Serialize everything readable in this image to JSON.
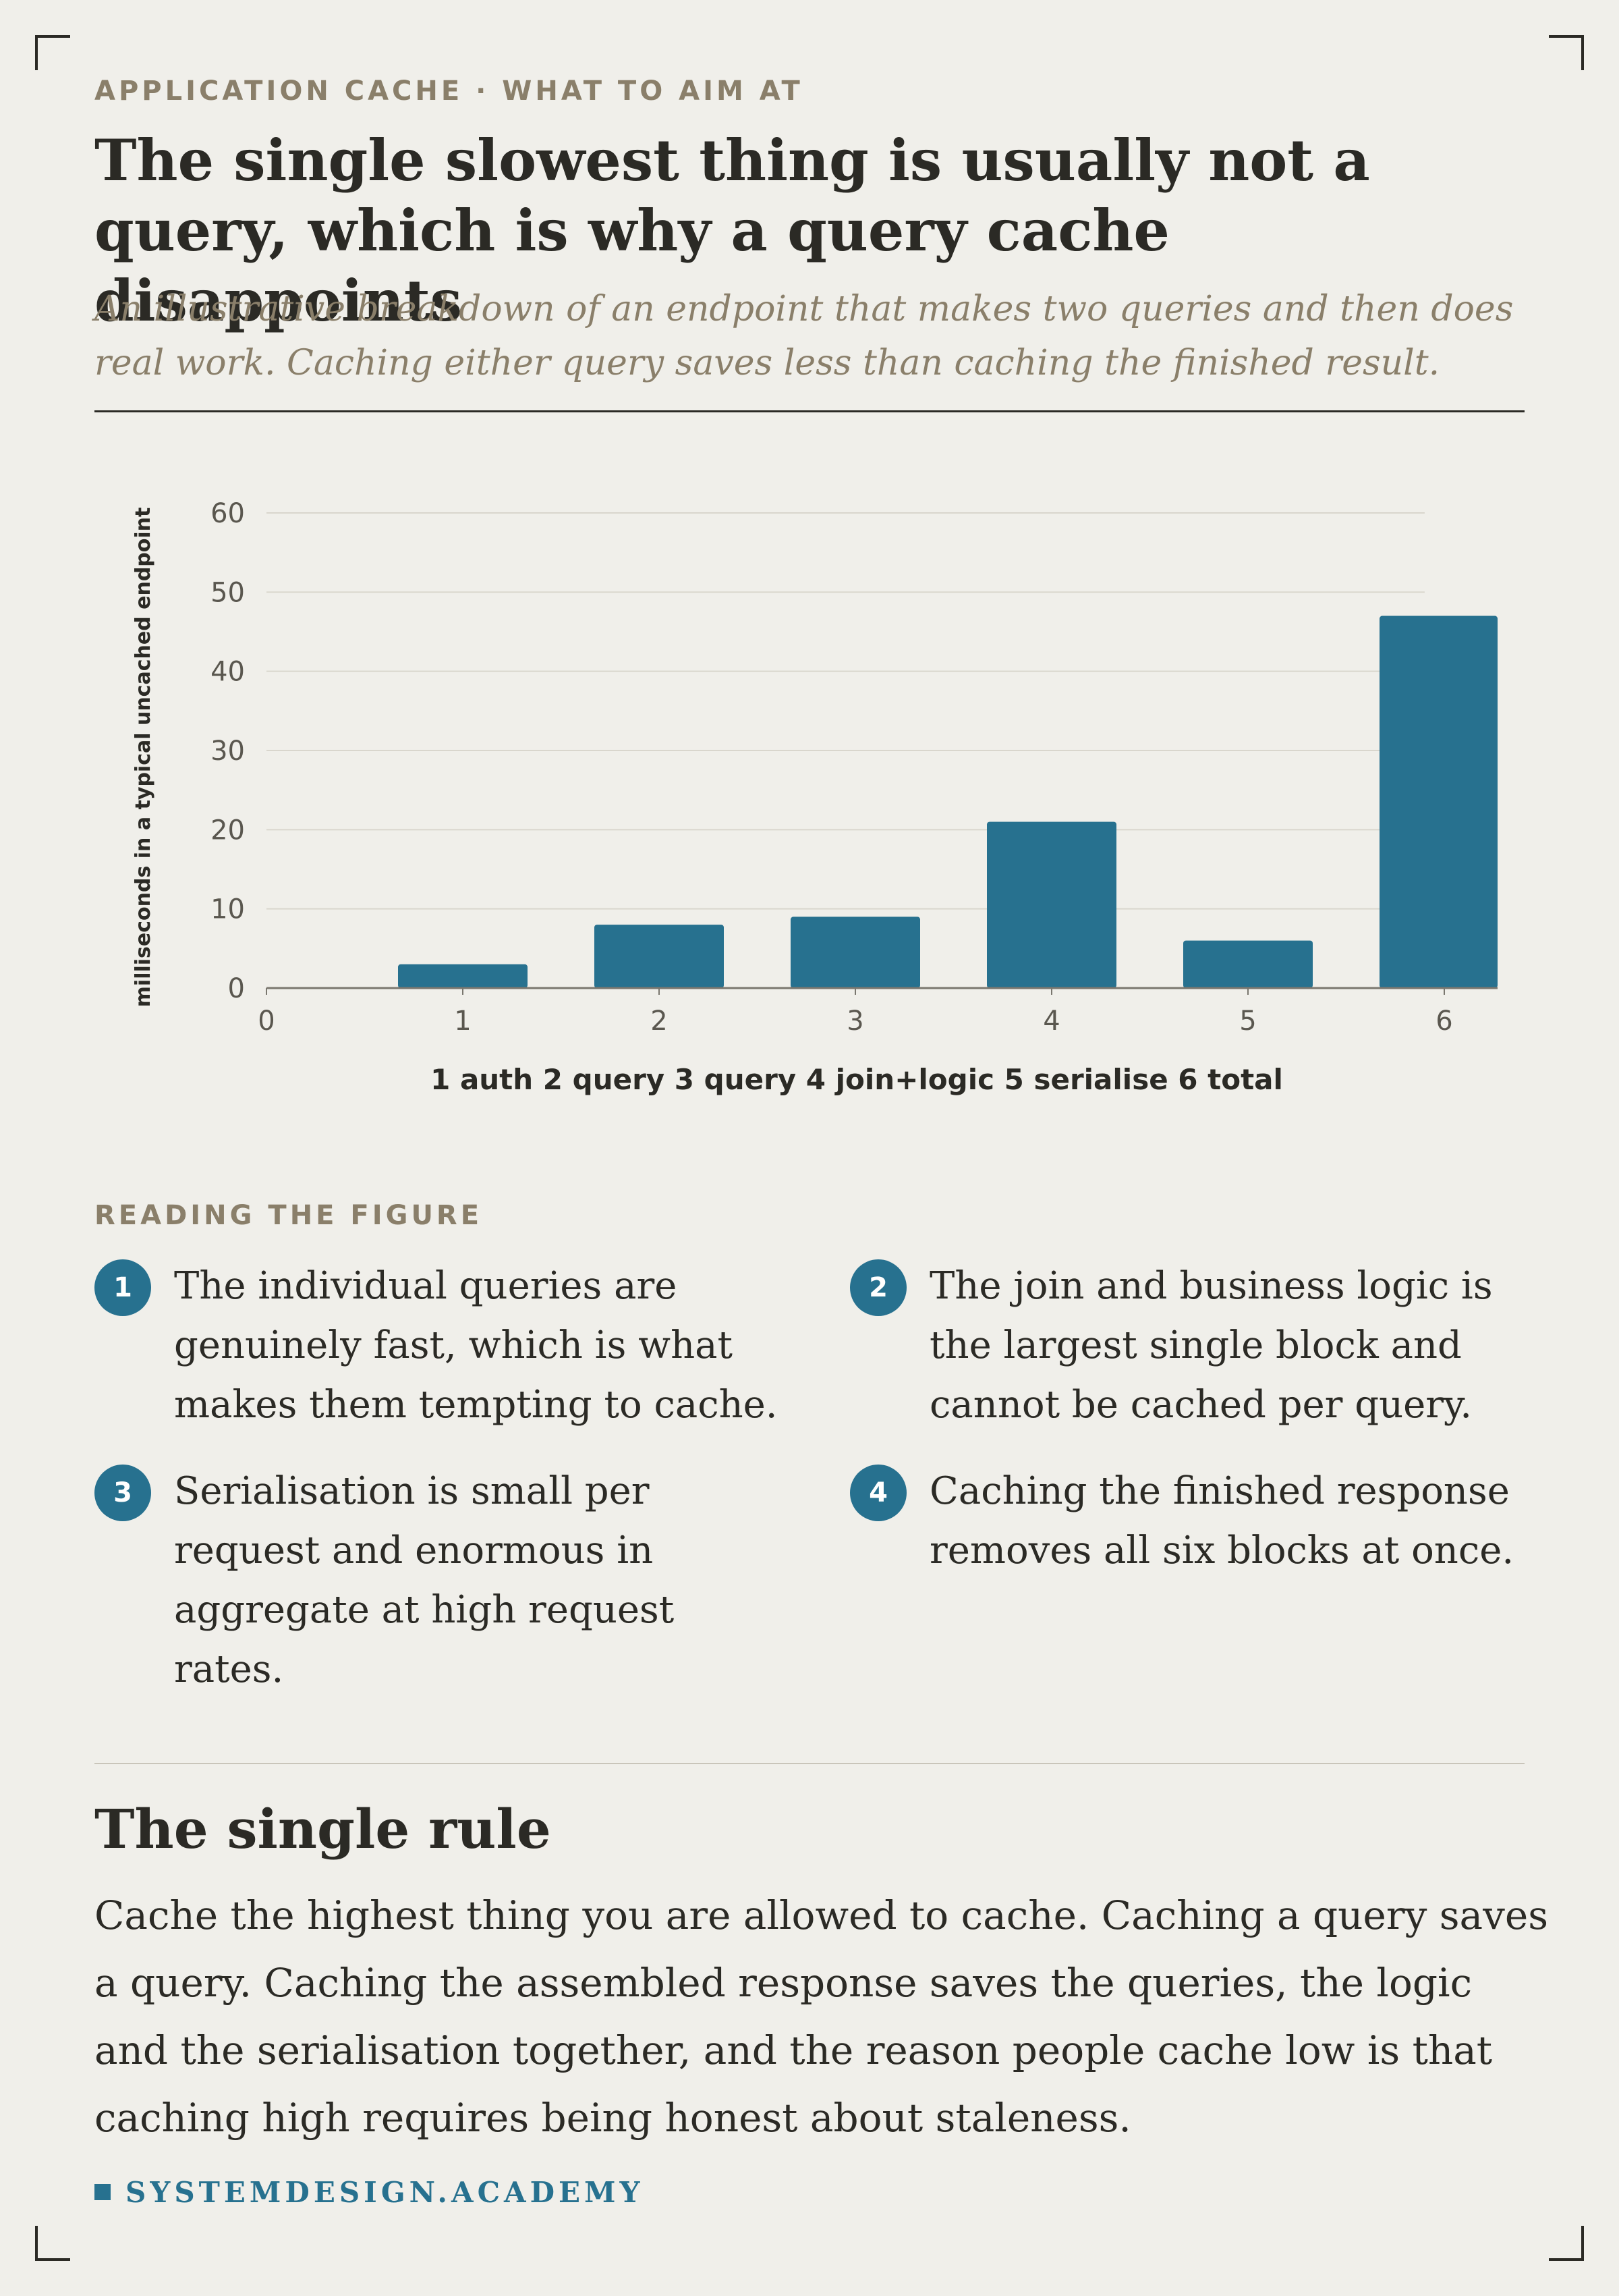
{
  "header": {
    "eyebrow": "APPLICATION CACHE · WHAT TO AIM AT",
    "title": "The single slowest thing is usually not a query, which is why a query cache disappoints",
    "subtitle": "An illustrative breakdown of an endpoint that makes two queries and then does real work. Caching either query saves less than caching the finished result."
  },
  "colors": {
    "bar": "#27718f",
    "accent": "#27718f",
    "muted": "#8a7f6a",
    "ink": "#2b2a25",
    "background": "#f0efea"
  },
  "chart_data": {
    "type": "bar",
    "x": [
      1,
      2,
      3,
      4,
      5,
      6
    ],
    "values": [
      3,
      8,
      9,
      21,
      6,
      47
    ],
    "xlim": [
      0,
      6
    ],
    "ylim": [
      0,
      60
    ],
    "xticks": [
      "0",
      "1",
      "2",
      "3",
      "4",
      "5",
      "6"
    ],
    "yticks": [
      "0",
      "10",
      "20",
      "30",
      "40",
      "50",
      "60"
    ],
    "xlabel": "1 auth 2 query 3 query 4 join+logic 5 serialise 6 total",
    "ylabel": "milliseconds in a typical uncached endpoint",
    "grid": true,
    "legend": "none"
  },
  "reading": {
    "label": "READING THE FIGURE",
    "notes": [
      {
        "number": "1",
        "text": "The individual queries are genuinely fast, which is what makes them tempting to cache."
      },
      {
        "number": "2",
        "text": "The join and business logic is the largest single block and cannot be cached per query."
      },
      {
        "number": "3",
        "text": "Serialisation is small per request and enormous in aggregate at high request rates."
      },
      {
        "number": "4",
        "text": "Caching the finished response removes all six blocks at once."
      }
    ]
  },
  "rule": {
    "title": "The single rule",
    "body": "Cache the highest thing you are allowed to cache. Caching a query saves a query. Caching the assembled response saves the queries, the logic and the serialisation together, and the reason people cache low is that caching high requires being honest about staleness."
  },
  "footer": {
    "brand": "SYSTEMDESIGN.ACADEMY"
  }
}
